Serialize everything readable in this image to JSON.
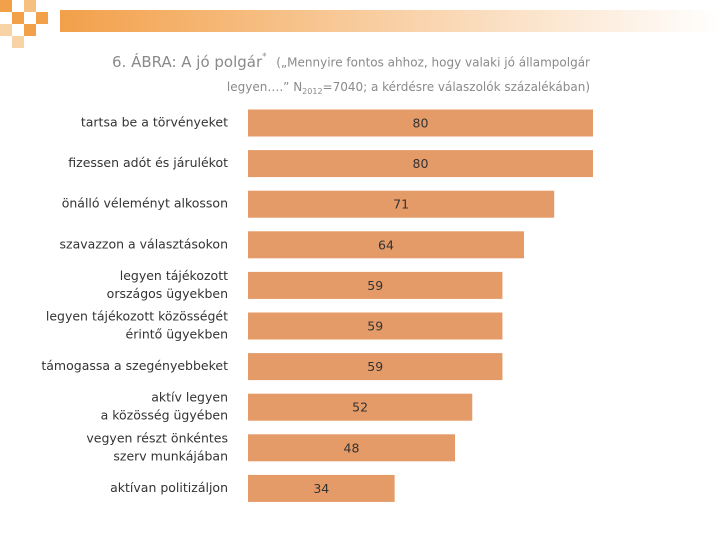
{
  "chart_data": {
    "type": "barh",
    "title": "6. ÁBRA: A jó polgár",
    "title_mark": "*",
    "subtitle_line1": "(„Mennyire fontos ahhoz, hogy valaki jó állampolgár",
    "subtitle_line2_start": "legyen….” N",
    "subtitle_line2_sub": "2012",
    "subtitle_line2_end": "=7040; a kérdésre válaszolók százalékában)",
    "categories": [
      [
        "tartsa be a törvényeket"
      ],
      [
        "fizessen adót és járulékot"
      ],
      [
        "önálló véleményt alkosson"
      ],
      [
        "szavazzon a választásokon"
      ],
      [
        "legyen tájékozott",
        "országos ügyekben"
      ],
      [
        "legyen tájékozott  közösségét",
        "érintő ügyekben"
      ],
      [
        "támogassa a szegényebbeket"
      ],
      [
        "aktív legyen",
        "a közösség ügyében"
      ],
      [
        "vegyen részt önkéntes",
        "szerv munkájában"
      ],
      [
        "aktívan politizáljon"
      ]
    ],
    "values": [
      80,
      80,
      71,
      64,
      59,
      59,
      59,
      52,
      48,
      34
    ],
    "color": "#e59b67",
    "xlim": [
      0,
      80
    ]
  }
}
